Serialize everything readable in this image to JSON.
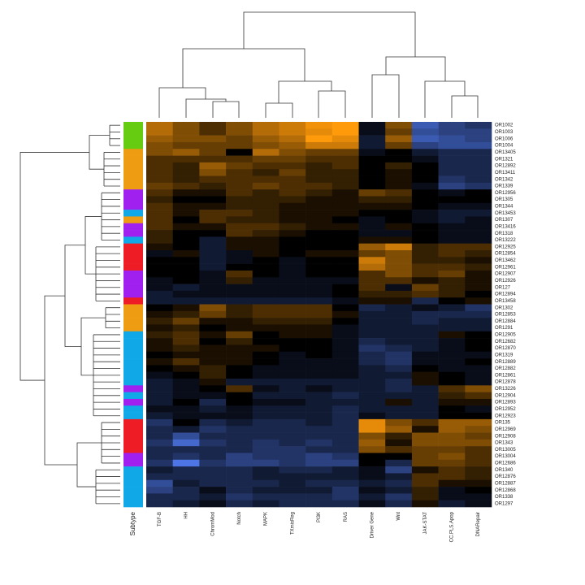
{
  "chart_data": {
    "type": "heatmap",
    "columns": [
      "TGF-B",
      "HH",
      "ChromMod",
      "Notch",
      "MAPK",
      "TXmisReg",
      "PI3K",
      "RAS",
      "Driver Gene",
      "Wnt",
      "JAK-STAT",
      "CC.PLS.Apop",
      "DNARepair"
    ],
    "rows": [
      "OR1002",
      "OR1003",
      "OR1006",
      "OR1004",
      "OR13405",
      "OR1321",
      "OR12892",
      "OR13411",
      "OR1342",
      "OR1339",
      "OR12956",
      "OR1305",
      "OR1344",
      "OR13453",
      "OR1307",
      "OR13416",
      "OR1318",
      "OR13222",
      "OR12925",
      "OR12854",
      "OR13462",
      "OR12961",
      "OR12907",
      "OR12926",
      "OR127",
      "OR12894",
      "OR13458",
      "OR1302",
      "OR12853",
      "OR12884",
      "OR1291",
      "OR12905",
      "OR12682",
      "OR12870",
      "OR1319",
      "OR12889",
      "OR12882",
      "OR12861",
      "OR12878",
      "OR13226",
      "OR12904",
      "OR12893",
      "OR12952",
      "OR12923",
      "OR135",
      "OR12969",
      "OR12908",
      "OR1343",
      "OR13005",
      "OR13004",
      "OR12686",
      "OR1340",
      "OR12876",
      "OR12887",
      "OR12868",
      "OR1338",
      "OR1297"
    ],
    "values": [
      [
        0.7,
        0.5,
        0.3,
        0.5,
        0.7,
        0.8,
        0.95,
        1,
        -0.1,
        0.5,
        -0.7,
        -0.5,
        -0.4
      ],
      [
        0.7,
        0.5,
        0.3,
        0.5,
        0.7,
        0.8,
        0.9,
        1,
        -0.1,
        0.4,
        -0.6,
        -0.5,
        -0.5
      ],
      [
        0.6,
        0.5,
        0.5,
        0.4,
        0.6,
        0.7,
        1,
        0.9,
        -0.2,
        0.6,
        -0.7,
        -0.6,
        -0.5
      ],
      [
        0.5,
        0.4,
        0.4,
        0.4,
        0.5,
        0.6,
        0.8,
        0.8,
        -0.2,
        0.4,
        -0.5,
        -0.6,
        -0.6
      ],
      [
        0.5,
        0.6,
        0.4,
        0,
        0.7,
        0.5,
        0.4,
        0.4,
        -0.1,
        0,
        -0.2,
        -0.3,
        -0.3
      ],
      [
        0.3,
        0.3,
        0.3,
        0.3,
        0.4,
        0.4,
        0.3,
        0.3,
        0,
        0,
        -0.1,
        -0.3,
        -0.3
      ],
      [
        0.3,
        0.2,
        0.6,
        0.4,
        0.3,
        0.3,
        0.2,
        0.3,
        0,
        0.2,
        0,
        -0.3,
        -0.3
      ],
      [
        0.3,
        0.2,
        0.5,
        0.3,
        0.2,
        0.4,
        0.2,
        0.2,
        0,
        0.1,
        0,
        -0.3,
        -0.3
      ],
      [
        0.3,
        0.2,
        0.3,
        0.3,
        0.3,
        0.3,
        0.2,
        0.2,
        0,
        0.1,
        0,
        -0.4,
        -0.3
      ],
      [
        0.4,
        0.3,
        0.2,
        0.3,
        0.4,
        0.3,
        0.3,
        0.2,
        0,
        0.1,
        -0.1,
        -0.5,
        -0.4
      ],
      [
        0.3,
        0.1,
        0.1,
        0.3,
        0.2,
        0.3,
        0.2,
        0.1,
        0.4,
        0.3,
        0,
        -0.1,
        0
      ],
      [
        0.2,
        0,
        0,
        0.2,
        0.2,
        0.2,
        0.1,
        0.1,
        0.2,
        0.2,
        0,
        0,
        0
      ],
      [
        0.3,
        0.1,
        0.1,
        0.2,
        0.2,
        0.1,
        0.1,
        0.1,
        0.1,
        0.1,
        0,
        -0.1,
        -0.1
      ],
      [
        0.3,
        0.1,
        0.3,
        0.3,
        0.2,
        0.1,
        0.1,
        0.1,
        0,
        0,
        -0.1,
        -0.2,
        -0.2
      ],
      [
        0.3,
        0,
        0.3,
        0.2,
        0.2,
        0.1,
        0.1,
        0,
        -0.1,
        0,
        -0.1,
        -0.2,
        -0.1
      ],
      [
        0.3,
        0.1,
        0.1,
        0.3,
        0.3,
        0.2,
        0.1,
        0.1,
        -0.1,
        0.1,
        0,
        -0.1,
        -0.1
      ],
      [
        0.2,
        0,
        0,
        0.3,
        0.2,
        0.1,
        0,
        0,
        -0.1,
        -0.1,
        0,
        -0.1,
        -0.1
      ],
      [
        0.2,
        0,
        -0.2,
        0.1,
        0.1,
        0,
        0,
        0,
        0.1,
        0.1,
        0,
        -0.1,
        -0.1
      ],
      [
        0.1,
        0,
        -0.2,
        0.1,
        0.1,
        0,
        0,
        0,
        0.6,
        0.8,
        0.2,
        0.3,
        0.3
      ],
      [
        -0.1,
        0.1,
        -0.2,
        -0.1,
        0.1,
        0,
        0.1,
        0.1,
        0.4,
        0.5,
        0.2,
        0.3,
        0.2
      ],
      [
        0,
        0,
        -0.2,
        -0.1,
        0,
        -0.1,
        0,
        0,
        0.8,
        0.5,
        0.2,
        0.2,
        0.1
      ],
      [
        0,
        0,
        -0.2,
        0,
        0,
        -0.1,
        0,
        0,
        0.7,
        0.5,
        0.3,
        0.3,
        0.2
      ],
      [
        0,
        0,
        -0.1,
        0.3,
        0,
        -0.1,
        0,
        0,
        0.3,
        0.5,
        0.3,
        0.4,
        0.1
      ],
      [
        -0.1,
        0,
        -0.1,
        0.2,
        -0.1,
        -0.1,
        -0.1,
        -0.1,
        0.3,
        0.3,
        0.1,
        0.2,
        0.1
      ],
      [
        -0.1,
        -0.2,
        -0.1,
        -0.1,
        -0.1,
        -0.1,
        -0.1,
        0,
        0.3,
        -0.1,
        0.4,
        0.2,
        0.1
      ],
      [
        -0.2,
        -0.1,
        -0.1,
        -0.1,
        -0.1,
        -0.1,
        -0.1,
        0,
        0.2,
        0.2,
        0.3,
        0.2,
        0
      ],
      [
        -0.2,
        -0.2,
        -0.2,
        -0.2,
        -0.2,
        -0.2,
        -0.2,
        -0.1,
        0.1,
        0.1,
        -0.3,
        0,
        0.1
      ],
      [
        0,
        0.1,
        0.5,
        0.2,
        0.3,
        0.3,
        0.3,
        0,
        -0.3,
        -0.2,
        -0.1,
        -0.2,
        -0.4
      ],
      [
        0.1,
        0.2,
        0.4,
        0.2,
        0.3,
        0.3,
        0.3,
        0.1,
        -0.2,
        -0.2,
        -0.3,
        -0.3,
        -0.3
      ],
      [
        0.2,
        0.4,
        0.1,
        0.1,
        0.2,
        0.2,
        0.2,
        0,
        -0.2,
        -0.2,
        -0.3,
        -0.2,
        -0.2
      ],
      [
        0.1,
        0.2,
        0,
        0.1,
        0.1,
        0.1,
        0.1,
        -0.1,
        -0.2,
        -0.2,
        -0.2,
        -0.2,
        -0.2
      ],
      [
        0.2,
        0.3,
        0.1,
        0.4,
        0,
        0.1,
        0.1,
        -0.1,
        -0.2,
        -0.2,
        -0.2,
        0.1,
        0
      ],
      [
        0.1,
        0.3,
        0,
        0.2,
        0,
        0,
        0,
        -0.1,
        -0.3,
        -0.2,
        -0.2,
        -0.1,
        0
      ],
      [
        0.1,
        0.2,
        0.1,
        0.1,
        0.1,
        0,
        0,
        -0.1,
        -0.4,
        -0.3,
        -0.2,
        -0.1,
        0
      ],
      [
        0,
        0.1,
        0.1,
        0.1,
        0,
        -0.1,
        0,
        -0.1,
        -0.3,
        -0.4,
        -0.1,
        -0.1,
        -0.1
      ],
      [
        0.1,
        0.3,
        0.1,
        0.1,
        0,
        -0.1,
        -0.1,
        -0.1,
        -0.3,
        -0.4,
        -0.1,
        -0.1,
        0
      ],
      [
        0,
        0.1,
        0.2,
        0,
        -0.1,
        -0.1,
        -0.1,
        -0.1,
        -0.2,
        -0.3,
        0,
        -0.1,
        -0.1
      ],
      [
        -0.1,
        0,
        0.2,
        0,
        -0.1,
        -0.1,
        -0.1,
        -0.1,
        -0.2,
        -0.2,
        0.1,
        0,
        -0.1
      ],
      [
        -0.2,
        -0.1,
        0.1,
        -0.2,
        -0.2,
        -0.2,
        -0.2,
        -0.2,
        -0.2,
        -0.3,
        0.1,
        0,
        -0.1
      ],
      [
        -0.2,
        -0.1,
        0,
        0.3,
        -0.1,
        -0.2,
        -0.1,
        -0.2,
        -0.2,
        -0.3,
        -0.2,
        0.3,
        0.5
      ],
      [
        -0.2,
        -0.1,
        -0.1,
        0,
        -0.2,
        -0.2,
        -0.2,
        -0.3,
        -0.2,
        -0.2,
        -0.2,
        0.2,
        0.3
      ],
      [
        -0.2,
        0,
        -0.3,
        0,
        -0.1,
        -0.1,
        -0.2,
        -0.2,
        -0.2,
        0.1,
        -0.2,
        0.1,
        0.1
      ],
      [
        -0.1,
        -0.1,
        -0.2,
        -0.1,
        -0.2,
        -0.2,
        -0.2,
        -0.3,
        -0.2,
        -0.2,
        -0.2,
        0,
        -0.1
      ],
      [
        -0.2,
        -0.1,
        -0.1,
        -0.1,
        -0.2,
        -0.2,
        -0.2,
        -0.3,
        -0.1,
        -0.2,
        -0.2,
        0,
        0
      ],
      [
        -0.4,
        0,
        -0.3,
        -0.2,
        -0.3,
        -0.3,
        -0.2,
        -0.3,
        0.9,
        0.5,
        0.3,
        0.6,
        0.6
      ],
      [
        -0.3,
        -0.2,
        -0.4,
        -0.3,
        -0.3,
        -0.3,
        -0.3,
        -0.3,
        0.9,
        0.6,
        0.1,
        0.6,
        0.5
      ],
      [
        -0.3,
        -0.6,
        -0.3,
        -0.3,
        -0.3,
        -0.3,
        -0.3,
        -0.3,
        0.5,
        0.2,
        0.5,
        0.5,
        0.4
      ],
      [
        -0.4,
        -0.8,
        -0.4,
        -0.3,
        -0.4,
        -0.3,
        -0.4,
        -0.3,
        0.6,
        0.1,
        0.5,
        0.5,
        0.5
      ],
      [
        -0.3,
        -0.3,
        -0.3,
        -0.3,
        -0.4,
        -0.4,
        -0.3,
        -0.3,
        0.5,
        0.3,
        0.4,
        0.4,
        0.3
      ],
      [
        -0.3,
        -0.4,
        -0.3,
        -0.5,
        -0.4,
        -0.4,
        -0.5,
        -0.4,
        0,
        0,
        0.4,
        0.5,
        0.3
      ],
      [
        -0.4,
        -0.9,
        -0.4,
        -0.5,
        -0.5,
        -0.4,
        -0.5,
        -0.5,
        0,
        -0.3,
        0.4,
        0.4,
        0.3
      ],
      [
        -0.2,
        -0.3,
        -0.3,
        -0.3,
        -0.2,
        -0.3,
        -0.3,
        -0.2,
        -0.1,
        -0.5,
        0.1,
        0.3,
        0.2
      ],
      [
        -0.3,
        -0.3,
        -0.3,
        -0.3,
        -0.2,
        -0.2,
        -0.2,
        -0.2,
        -0.1,
        -0.2,
        0.3,
        0.3,
        0.2
      ],
      [
        -0.6,
        -0.2,
        -0.3,
        -0.3,
        -0.3,
        -0.2,
        -0.3,
        -0.3,
        -0.2,
        -0.3,
        0.3,
        0.1,
        0.1
      ],
      [
        -0.5,
        -0.3,
        -0.1,
        -0.3,
        -0.2,
        -0.2,
        -0.2,
        -0.4,
        -0.1,
        -0.2,
        0.2,
        -0.1,
        0
      ],
      [
        -0.3,
        -0.3,
        -0.2,
        -0.4,
        -0.3,
        -0.3,
        -0.3,
        -0.4,
        -0.2,
        -0.4,
        0.2,
        -0.1,
        -0.1
      ],
      [
        -0.3,
        -0.2,
        -0.1,
        -0.3,
        -0.2,
        -0.3,
        -0.3,
        -0.3,
        -0.1,
        -0.3,
        0.1,
        -0.2,
        -0.1
      ]
    ],
    "colors": {
      "low": "#5582ff",
      "mid": "#000000",
      "high": "#ff9a0a"
    },
    "row_annotation": {
      "label": "Subtype",
      "colors": [
        "#66cc11",
        "#66cc11",
        "#66cc11",
        "#66cc11",
        "#ee9c11",
        "#ee9c11",
        "#ee9c11",
        "#ee9c11",
        "#ee9c11",
        "#ee9c11",
        "#a020f0",
        "#a020f0",
        "#a020f0",
        "#11a8e8",
        "#ee9c11",
        "#a020f0",
        "#a020f0",
        "#11a8e8",
        "#ee1c25",
        "#ee1c25",
        "#ee1c25",
        "#ee1c25",
        "#a020f0",
        "#a020f0",
        "#a020f0",
        "#a020f0",
        "#ee1c25",
        "#ee9c11",
        "#ee9c11",
        "#ee9c11",
        "#ee9c11",
        "#11a8e8",
        "#11a8e8",
        "#11a8e8",
        "#11a8e8",
        "#11a8e8",
        "#11a8e8",
        "#11a8e8",
        "#11a8e8",
        "#a020f0",
        "#11a8e8",
        "#a020f0",
        "#11a8e8",
        "#11a8e8",
        "#ee1c25",
        "#ee1c25",
        "#ee1c25",
        "#ee1c25",
        "#ee1c25",
        "#a020f0",
        "#a020f0",
        "#11a8e8",
        "#11a8e8",
        "#11a8e8",
        "#11a8e8",
        "#11a8e8",
        "#11a8e8"
      ]
    }
  }
}
